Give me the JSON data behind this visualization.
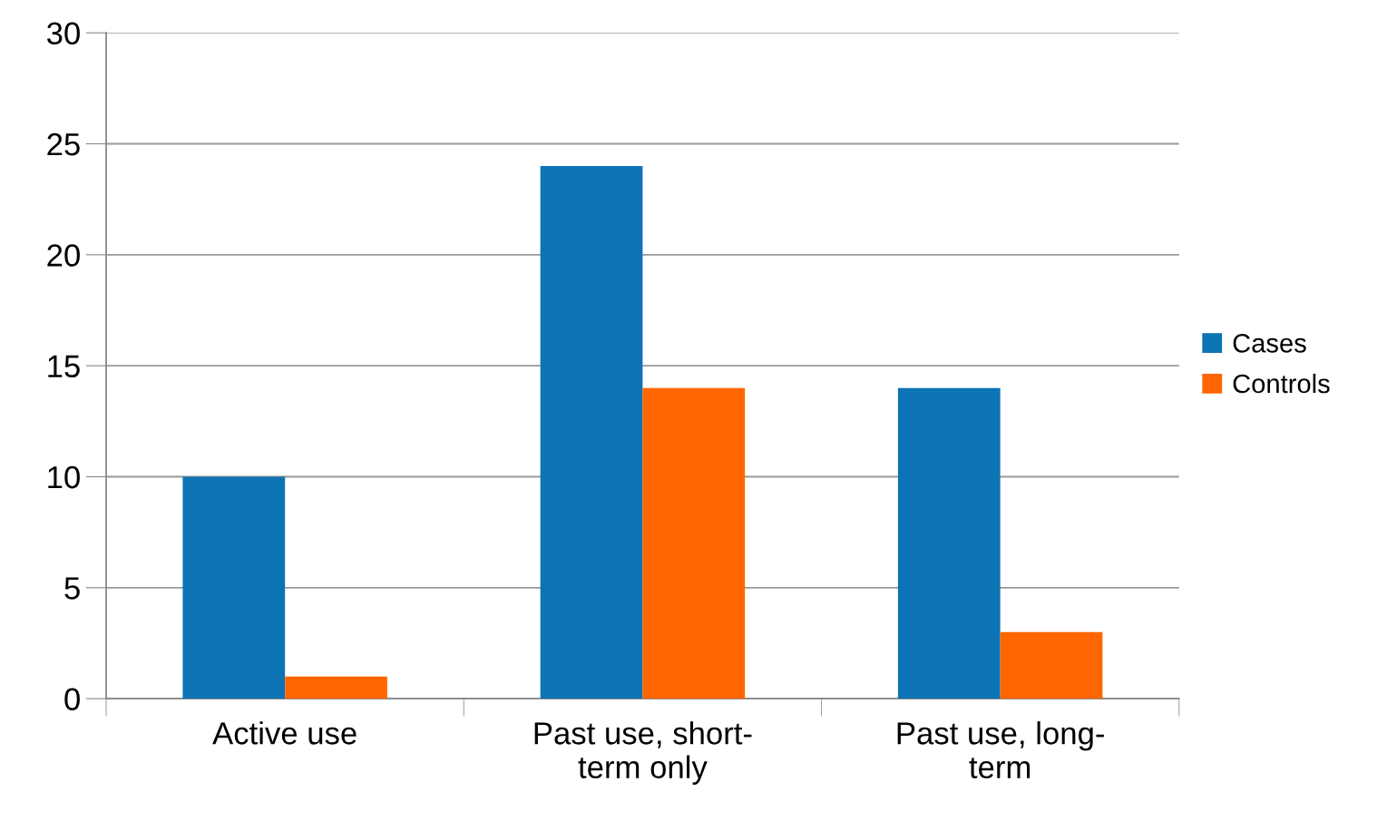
{
  "chart_data": {
    "type": "bar",
    "categories": [
      "Active use",
      "Past use, short-\nterm only",
      "Past use, long-\nterm"
    ],
    "series": [
      {
        "name": "Cases",
        "color": "#0c74b4",
        "values": [
          10,
          24,
          14
        ]
      },
      {
        "name": "Controls",
        "color": "#ff6600",
        "values": [
          1,
          14,
          3
        ]
      }
    ],
    "ylim": [
      0,
      30
    ],
    "yticks": [
      0,
      5,
      10,
      15,
      20,
      25,
      30
    ],
    "grid": "y",
    "legend": "right"
  }
}
